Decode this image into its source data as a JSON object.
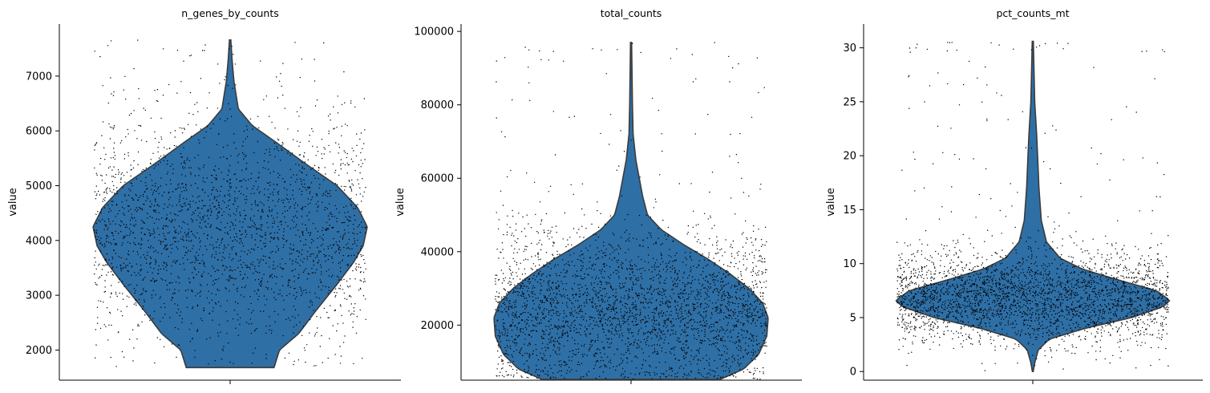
{
  "chart_data": [
    {
      "type": "violin",
      "title": "n_genes_by_counts",
      "ylabel": "value",
      "ylim": [
        1450,
        7950
      ],
      "yticks": [
        2000,
        3000,
        4000,
        5000,
        6000,
        7000
      ],
      "ytick_labels": [
        "2000",
        "3000",
        "4000",
        "5000",
        "6000",
        "7000"
      ],
      "fill_color": "#2e6fa6",
      "profile": [
        [
          1680,
          0.32
        ],
        [
          2000,
          0.36
        ],
        [
          2300,
          0.5
        ],
        [
          2700,
          0.62
        ],
        [
          3200,
          0.78
        ],
        [
          3600,
          0.9
        ],
        [
          3900,
          0.97
        ],
        [
          4250,
          1.0
        ],
        [
          4600,
          0.93
        ],
        [
          5000,
          0.78
        ],
        [
          5400,
          0.55
        ],
        [
          5800,
          0.33
        ],
        [
          6100,
          0.16
        ],
        [
          6400,
          0.06
        ],
        [
          6900,
          0.028
        ],
        [
          7300,
          0.014
        ],
        [
          7660,
          0.005
        ]
      ],
      "points": {
        "n": 2400,
        "mean": 4150,
        "sd": 1050,
        "min": 1680,
        "max": 7660
      }
    },
    {
      "type": "violin",
      "title": "total_counts",
      "ylabel": "value",
      "ylim": [
        5000,
        102000
      ],
      "yticks": [
        20000,
        40000,
        60000,
        80000,
        100000
      ],
      "ytick_labels": [
        "20000",
        "40000",
        "60000",
        "80000",
        "100000"
      ],
      "fill_color": "#2e6fa6",
      "profile": [
        [
          5200,
          0.65
        ],
        [
          8000,
          0.82
        ],
        [
          12000,
          0.93
        ],
        [
          17000,
          0.99
        ],
        [
          22000,
          1.0
        ],
        [
          26000,
          0.96
        ],
        [
          30000,
          0.86
        ],
        [
          34000,
          0.72
        ],
        [
          38000,
          0.56
        ],
        [
          42000,
          0.38
        ],
        [
          46000,
          0.22
        ],
        [
          50000,
          0.12
        ],
        [
          55000,
          0.085
        ],
        [
          60000,
          0.06
        ],
        [
          65000,
          0.035
        ],
        [
          72000,
          0.015
        ],
        [
          80000,
          0.01
        ],
        [
          97000,
          0.004
        ]
      ],
      "points": {
        "n": 3000,
        "mean": 24000,
        "sd": 10500,
        "min": 5200,
        "max": 97000
      }
    },
    {
      "type": "violin",
      "title": "pct_counts_mt",
      "ylabel": "value",
      "ylim": [
        -0.8,
        32.2
      ],
      "yticks": [
        0,
        5,
        10,
        15,
        20,
        25,
        30
      ],
      "ytick_labels": [
        "0",
        "5",
        "10",
        "15",
        "20",
        "25",
        "30"
      ],
      "fill_color": "#2e6fa6",
      "profile": [
        [
          0,
          0.003
        ],
        [
          0.8,
          0.014
        ],
        [
          2,
          0.04
        ],
        [
          3,
          0.12
        ],
        [
          4,
          0.38
        ],
        [
          5,
          0.72
        ],
        [
          6,
          0.95
        ],
        [
          6.6,
          1.0
        ],
        [
          7.5,
          0.9
        ],
        [
          8.5,
          0.62
        ],
        [
          9.5,
          0.36
        ],
        [
          10.5,
          0.2
        ],
        [
          12,
          0.1
        ],
        [
          14,
          0.062
        ],
        [
          17,
          0.045
        ],
        [
          20,
          0.035
        ],
        [
          22,
          0.028
        ],
        [
          25,
          0.014
        ],
        [
          30.6,
          0.004
        ]
      ],
      "points": {
        "n": 3000,
        "mean": 6.8,
        "sd": 2.2,
        "min": 0,
        "max": 30.6
      }
    }
  ]
}
